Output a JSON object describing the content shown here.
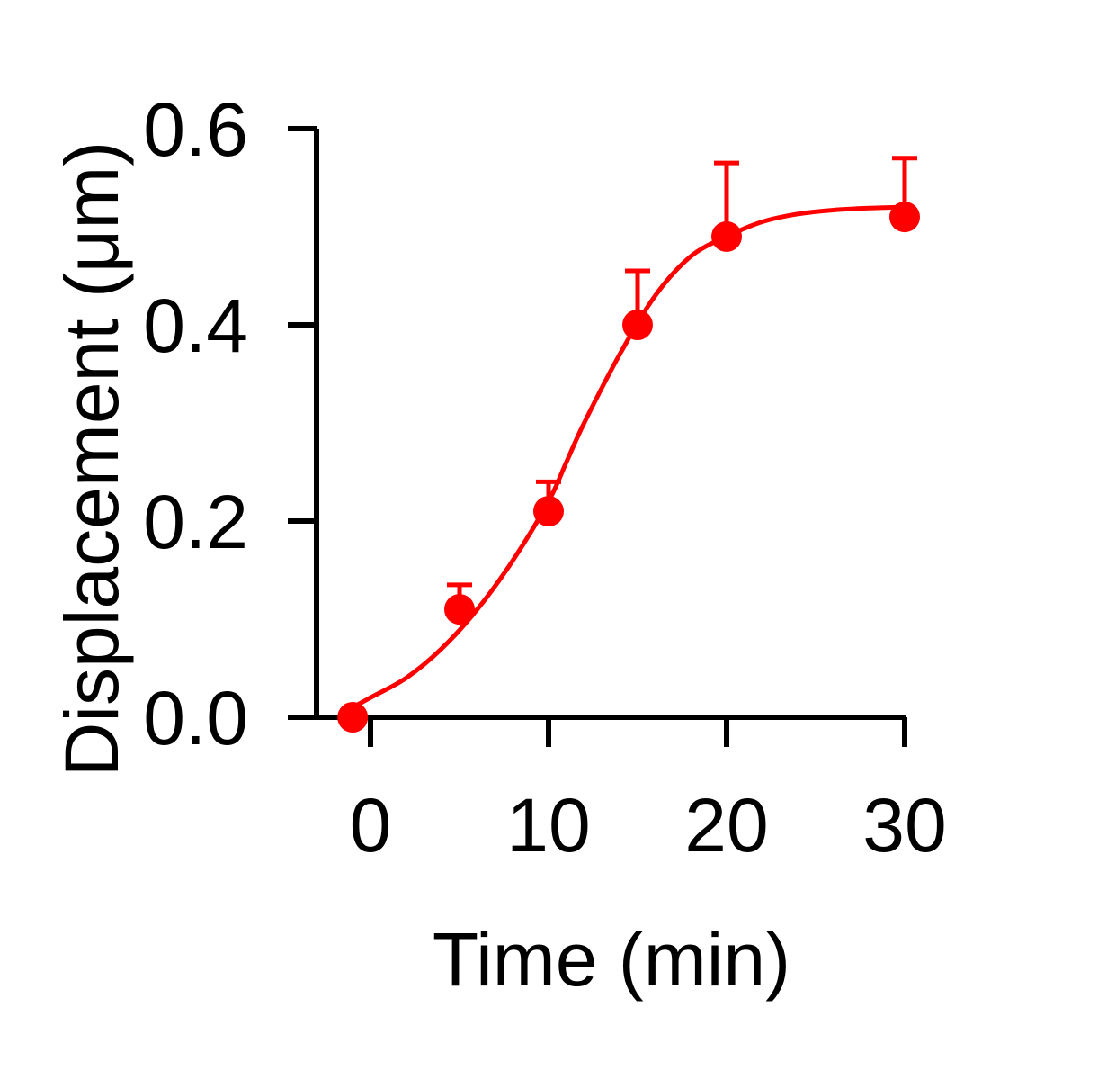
{
  "chart_data": {
    "type": "scatter",
    "xlabel": "Time (min)",
    "ylabel": "Displacement (μm)",
    "xlim": [
      -1,
      30
    ],
    "ylim": [
      0,
      0.6
    ],
    "xticks": [
      0,
      10,
      20,
      30
    ],
    "xtick_labels": [
      "0",
      "10",
      "20",
      "30"
    ],
    "yticks": [
      0,
      0.2,
      0.4,
      0.6
    ],
    "ytick_labels": [
      "0.0",
      "0.2",
      "0.4",
      "0.6"
    ],
    "grid": false,
    "legend": "none",
    "series": [
      {
        "x": [
          -1,
          5,
          10,
          15,
          20,
          30
        ],
        "y": [
          0.0,
          0.11,
          0.21,
          0.4,
          0.49,
          0.51
        ],
        "error_upper": [
          0.0,
          0.135,
          0.24,
          0.455,
          0.565,
          0.57
        ],
        "color": "#ff0000"
      }
    ],
    "fit": {
      "type": "sigmoid",
      "color": "#ff0000",
      "x": [
        -1,
        0,
        2,
        4,
        6,
        8,
        10,
        11,
        12,
        14,
        16,
        18,
        20,
        22,
        24,
        26,
        28,
        30
      ],
      "y": [
        0.01,
        0.02,
        0.04,
        0.07,
        0.11,
        0.16,
        0.22,
        0.26,
        0.3,
        0.37,
        0.43,
        0.47,
        0.49,
        0.505,
        0.513,
        0.517,
        0.519,
        0.52
      ]
    }
  }
}
